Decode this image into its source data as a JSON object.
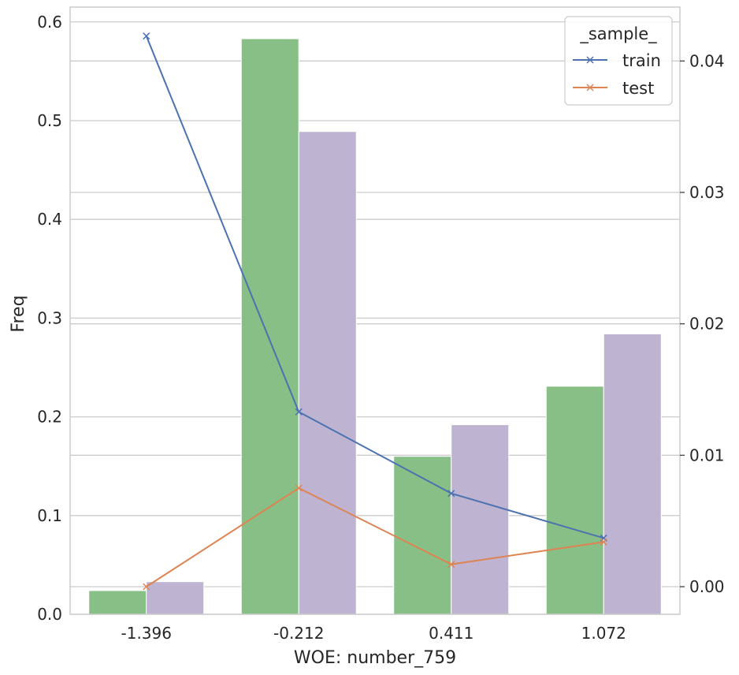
{
  "chart_data": {
    "type": "bar",
    "categories": [
      "-1.396",
      "-0.212",
      "0.411",
      "1.072"
    ],
    "xlabel": "WOE: number_759",
    "ylabel": "Freq",
    "ylim": [
      0,
      0.615
    ],
    "yticks": [
      "0.0",
      "0.1",
      "0.2",
      "0.3",
      "0.4",
      "0.5",
      "0.6"
    ],
    "bar_series": [
      {
        "values": [
          0.024,
          0.583,
          0.16,
          0.231
        ],
        "color": "#88bf87"
      },
      {
        "values": [
          0.033,
          0.489,
          0.192,
          0.284
        ],
        "color": "#bfb3d2"
      }
    ],
    "y2lim": [
      -0.0021,
      0.0441
    ],
    "y2ticks": [
      "0.00",
      "0.01",
      "0.02",
      "0.03",
      "0.04"
    ],
    "line_series": [
      {
        "name": "train",
        "values": [
          0.0419,
          0.0133,
          0.0071,
          0.0037
        ],
        "color": "#4c72b0"
      },
      {
        "name": "test",
        "values": [
          0.0,
          0.0075,
          0.0017,
          0.0034
        ],
        "color": "#dd8452"
      }
    ],
    "legend": {
      "title": "_sample_",
      "position": "top-right"
    },
    "grid": true
  }
}
